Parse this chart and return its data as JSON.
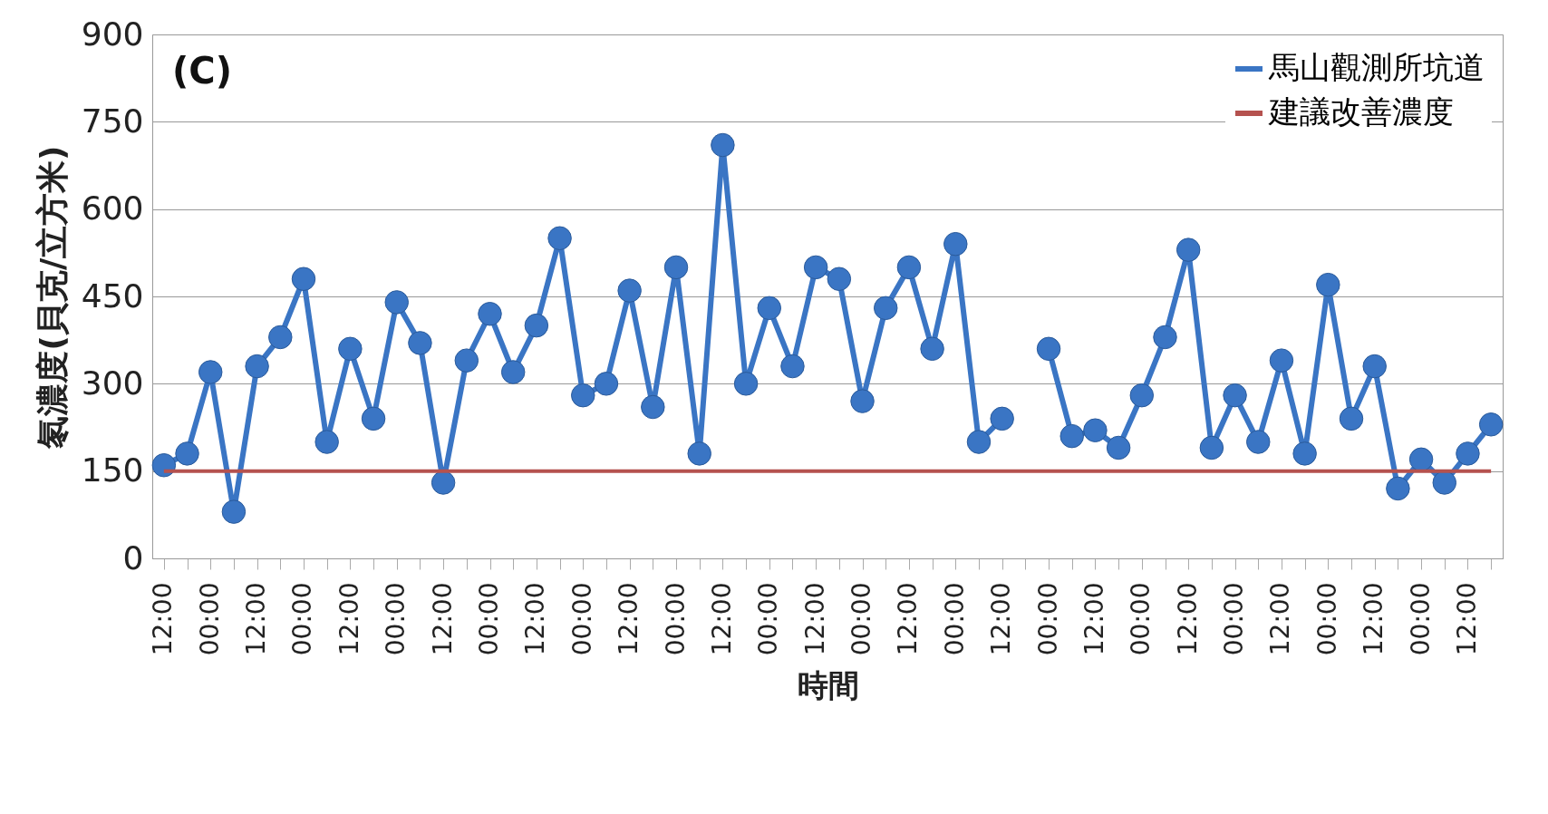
{
  "chart_data": {
    "type": "line",
    "xlabel": "時間",
    "ylabel": "氡濃度(貝克/立方米)",
    "annotations": [
      "(C)"
    ],
    "categories": [
      "12:00",
      null,
      "00:00",
      null,
      "12:00",
      null,
      "00:00",
      null,
      "12:00",
      null,
      "00:00",
      null,
      "12:00",
      null,
      "00:00",
      null,
      "12:00",
      null,
      "00:00",
      null,
      "12:00",
      null,
      "00:00",
      null,
      "12:00",
      null,
      "00:00",
      null,
      "12:00",
      null,
      "00:00",
      null,
      "12:00",
      null,
      "00:00",
      null,
      "12:00",
      null,
      "00:00",
      null,
      "12:00",
      null,
      "00:00",
      null,
      "12:00",
      null,
      "00:00",
      null,
      "12:00",
      null,
      "00:00",
      null,
      "12:00",
      null,
      "00:00",
      null,
      "12:00",
      null
    ],
    "series": [
      {
        "name": "馬山觀測所坑道",
        "color": "#3a75c4",
        "values": [
          160,
          180,
          320,
          80,
          330,
          380,
          480,
          200,
          360,
          240,
          440,
          370,
          130,
          340,
          420,
          320,
          400,
          550,
          280,
          300,
          460,
          260,
          500,
          180,
          710,
          300,
          430,
          330,
          500,
          480,
          270,
          430,
          500,
          360,
          540,
          200,
          240,
          null,
          360,
          210,
          220,
          190,
          280,
          380,
          530,
          190,
          280,
          200,
          340,
          180,
          470,
          240,
          330,
          120,
          170,
          130,
          180,
          230
        ]
      },
      {
        "name": "建議改善濃度",
        "color": "#b5524f",
        "type": "line",
        "marker": "none",
        "values": [
          150,
          150,
          150,
          150,
          150,
          150,
          150,
          150,
          150,
          150,
          150,
          150,
          150,
          150,
          150,
          150,
          150,
          150,
          150,
          150,
          150,
          150,
          150,
          150,
          150,
          150,
          150,
          150,
          150,
          150,
          150,
          150,
          150,
          150,
          150,
          150,
          150,
          150,
          150,
          150,
          150,
          150,
          150,
          150,
          150,
          150,
          150,
          150,
          150,
          150,
          150,
          150,
          150,
          150,
          150,
          150,
          150,
          150
        ]
      }
    ],
    "ylim": [
      0,
      900
    ],
    "yticks": [
      0,
      150,
      300,
      450,
      600,
      750,
      900
    ],
    "grid": "y",
    "legend": "top right",
    "marker": "circle",
    "line_style": "solid"
  }
}
